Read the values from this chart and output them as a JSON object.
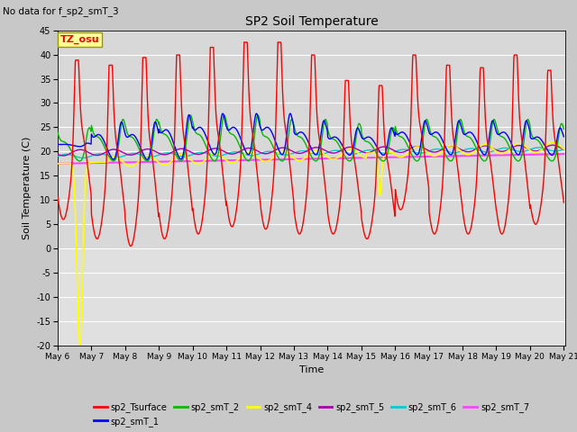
{
  "title": "SP2 Soil Temperature",
  "ylabel": "Soil Temperature (C)",
  "xlabel": "Time",
  "no_data_text": "No data for f_sp2_smT_3",
  "tz_label": "TZ_osu",
  "ylim": [
    -20,
    45
  ],
  "yticks": [
    -20,
    -15,
    -10,
    -5,
    0,
    5,
    10,
    15,
    20,
    25,
    30,
    35,
    40,
    45
  ],
  "x_start_day": 6,
  "x_end_day": 21,
  "x_ticks": [
    6,
    7,
    8,
    9,
    10,
    11,
    12,
    13,
    14,
    15,
    16,
    17,
    18,
    19,
    20,
    21
  ],
  "x_tick_labels": [
    "May 6",
    "May 7",
    "May 8",
    "May 9",
    "May 10",
    "May 11",
    "May 12",
    "May 13",
    "May 14",
    "May 15",
    "May 16",
    "May 17",
    "May 18",
    "May 19",
    "May 20",
    "May 21"
  ],
  "plot_bg_color": "#d8d8d8",
  "fig_bg_color": "#c8c8c8",
  "series": {
    "sp2_Tsurface": {
      "color": "#ff0000",
      "lw": 1.0
    },
    "sp2_smT_1": {
      "color": "#0000ff",
      "lw": 1.0
    },
    "sp2_smT_2": {
      "color": "#00bb00",
      "lw": 1.0
    },
    "sp2_smT_4": {
      "color": "#ffff00",
      "lw": 1.2
    },
    "sp2_smT_5": {
      "color": "#aa00aa",
      "lw": 1.0
    },
    "sp2_smT_6": {
      "color": "#00cccc",
      "lw": 1.0
    },
    "sp2_smT_7": {
      "color": "#ff44ff",
      "lw": 1.5
    }
  },
  "legend_order": [
    "sp2_Tsurface",
    "sp2_smT_1",
    "sp2_smT_2",
    "sp2_smT_4",
    "sp2_smT_5",
    "sp2_smT_6",
    "sp2_smT_7"
  ],
  "surf_peaks": [
    37,
    36,
    37.5,
    38,
    39.5,
    40.5,
    40.5,
    38,
    33,
    32,
    38,
    36,
    35.5,
    38,
    35
  ],
  "surf_troughs": [
    6,
    2,
    0.5,
    2,
    3,
    4.5,
    4,
    3,
    3,
    2,
    8,
    3,
    3,
    3,
    5
  ],
  "s1_peaks": [
    22,
    29,
    29,
    31,
    31,
    31,
    31,
    29,
    27,
    27,
    29,
    29,
    29,
    29,
    27
  ],
  "s1_troughs": [
    21,
    18,
    18,
    18,
    19,
    19,
    19,
    19,
    19,
    19,
    19,
    19,
    19,
    19,
    19
  ],
  "s2_peaks": [
    26,
    28,
    28,
    29,
    29,
    29,
    28,
    28,
    27,
    26,
    28,
    28,
    28,
    28,
    27
  ],
  "s2_troughs": [
    18,
    18,
    18,
    18,
    18,
    18,
    18,
    18,
    18,
    18,
    18,
    18,
    18,
    18,
    18
  ],
  "s4_spike_day": 6.6,
  "s4_spike_val": -20,
  "s4_spike2_day": 15.5,
  "s4_spike2_val": 11,
  "s5_base_start": 19.5,
  "s5_base_end": 20.5,
  "s6_base_start": 19.0,
  "s6_base_end": 20.5,
  "s7_base_start": 17.5,
  "s7_base_end": 19.5
}
